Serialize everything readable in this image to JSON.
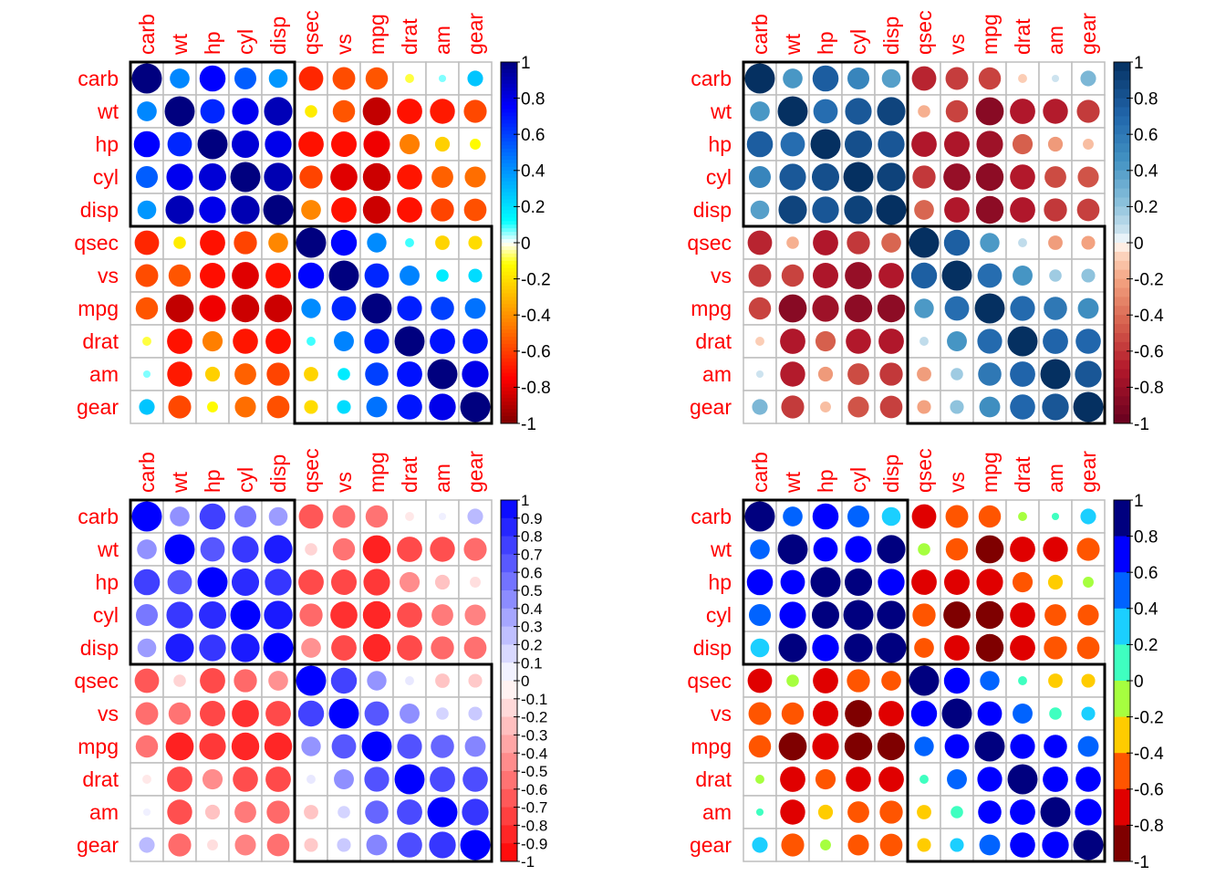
{
  "chart_data": [
    {
      "type": "heatmap",
      "title": "",
      "variables": [
        "carb",
        "wt",
        "hp",
        "cyl",
        "disp",
        "qsec",
        "vs",
        "mpg",
        "drat",
        "am",
        "gear"
      ],
      "clusters": [
        5,
        6
      ],
      "palette": "blue-cyan-yellow-red",
      "legend_ticks": [
        "1",
        "0.8",
        "0.6",
        "0.4",
        "0.2",
        "0",
        "-0.2",
        "-0.4",
        "-0.6",
        "-0.8",
        "-1"
      ],
      "legend_position": "right"
    },
    {
      "type": "heatmap",
      "title": "",
      "variables": [
        "carb",
        "wt",
        "hp",
        "cyl",
        "disp",
        "qsec",
        "vs",
        "mpg",
        "drat",
        "am",
        "gear"
      ],
      "clusters": [
        5,
        6
      ],
      "palette": "diverging-blue-white-red",
      "legend_ticks": [
        "1",
        "0.8",
        "0.6",
        "0.4",
        "0.2",
        "0",
        "-0.2",
        "-0.4",
        "-0.6",
        "-0.8",
        "-1"
      ],
      "legend_position": "right"
    },
    {
      "type": "heatmap",
      "title": "",
      "variables": [
        "carb",
        "wt",
        "hp",
        "cyl",
        "disp",
        "qsec",
        "vs",
        "mpg",
        "drat",
        "am",
        "gear"
      ],
      "clusters": [
        5,
        6
      ],
      "palette": "blue-white-red",
      "legend_ticks": [
        "1",
        "0.9",
        "0.8",
        "0.7",
        "0.6",
        "0.5",
        "0.4",
        "0.3",
        "0.2",
        "0.1",
        "0",
        "-0.1",
        "-0.2",
        "-0.3",
        "-0.4",
        "-0.5",
        "-0.6",
        "-0.7",
        "-0.8",
        "-0.9",
        "-1"
      ],
      "legend_position": "right"
    },
    {
      "type": "heatmap",
      "title": "",
      "variables": [
        "carb",
        "wt",
        "hp",
        "cyl",
        "disp",
        "qsec",
        "vs",
        "mpg",
        "drat",
        "am",
        "gear"
      ],
      "clusters": [
        5,
        6
      ],
      "palette": "binned-navy-cyan-yellow-red",
      "legend_ticks": [
        "1",
        "0.8",
        "0.6",
        "0.4",
        "0.2",
        "0",
        "-0.2",
        "-0.4",
        "-0.6",
        "-0.8",
        "-1"
      ],
      "legend_position": "right"
    }
  ],
  "correlation_matrix": [
    [
      1.0,
      0.43,
      0.75,
      0.53,
      0.39,
      -0.66,
      -0.57,
      -0.55,
      -0.09,
      0.06,
      0.27
    ],
    [
      0.43,
      1.0,
      0.66,
      0.78,
      0.89,
      -0.17,
      -0.55,
      -0.87,
      -0.71,
      -0.69,
      -0.58
    ],
    [
      0.75,
      0.66,
      1.0,
      0.83,
      0.79,
      -0.71,
      -0.72,
      -0.78,
      -0.45,
      -0.24,
      -0.13
    ],
    [
      0.53,
      0.78,
      0.83,
      1.0,
      0.9,
      -0.59,
      -0.81,
      -0.85,
      -0.7,
      -0.52,
      -0.49
    ],
    [
      0.39,
      0.89,
      0.79,
      0.9,
      1.0,
      -0.43,
      -0.71,
      -0.85,
      -0.71,
      -0.59,
      -0.56
    ],
    [
      -0.66,
      -0.17,
      -0.71,
      -0.59,
      -0.43,
      1.0,
      0.74,
      0.42,
      0.09,
      -0.23,
      -0.21
    ],
    [
      -0.57,
      -0.55,
      -0.72,
      -0.81,
      -0.71,
      0.74,
      1.0,
      0.66,
      0.44,
      0.17,
      0.21
    ],
    [
      -0.55,
      -0.87,
      -0.78,
      -0.85,
      -0.85,
      0.42,
      0.66,
      1.0,
      0.68,
      0.6,
      0.48
    ],
    [
      -0.09,
      -0.71,
      -0.45,
      -0.7,
      -0.71,
      0.09,
      0.44,
      0.68,
      1.0,
      0.71,
      0.7
    ],
    [
      0.06,
      -0.69,
      -0.24,
      -0.52,
      -0.59,
      -0.23,
      0.17,
      0.6,
      0.71,
      1.0,
      0.79
    ],
    [
      0.27,
      -0.58,
      -0.13,
      -0.49,
      -0.56,
      -0.21,
      0.21,
      0.48,
      0.7,
      0.79,
      1.0
    ]
  ],
  "colors": {
    "label": "#ff0000",
    "grid": "#bebebe",
    "cluster_rect": "#000000"
  }
}
